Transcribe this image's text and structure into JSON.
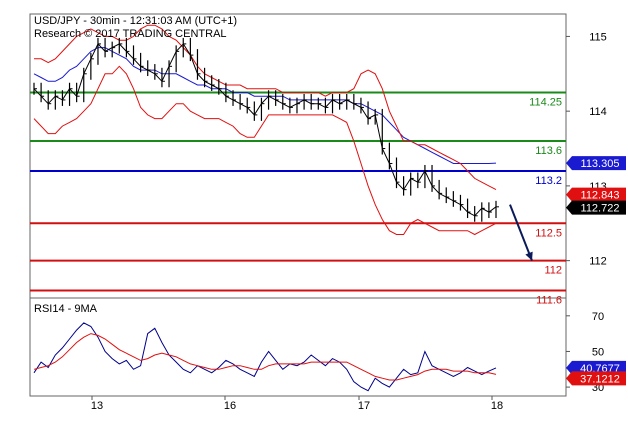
{
  "header": {
    "title": "USD/JPY - 30min - 12:31:03 AM (UTC+1)",
    "subtitle": "Research © 2017 TRADING CENTRAL"
  },
  "colors": {
    "price": "#000000",
    "bollinger": "#e01010",
    "moving_average": "#1a1ad0",
    "support_line": "#d01010",
    "resistance_line": "#1a8a1a",
    "pivot_line": "#0000cc",
    "price_tag_current": "#000000",
    "price_tag_ma": "#1a1ad0",
    "price_tag_band": "#e01010",
    "rsi_line": "#00008b",
    "rsi_ma_line": "#e01010",
    "grid_axis": "#555555"
  },
  "chart_data": [
    {
      "type": "line",
      "title": "USD/JPY - 30min - 12:31:03 AM (UTC+1)",
      "subtitle": "Research © 2017 TRADING CENTRAL",
      "x_tick_labels": [
        "13",
        "16",
        "17",
        "18"
      ],
      "y_tick_labels": [
        "115",
        "114",
        "113",
        "112"
      ],
      "ylim": [
        111.5,
        115.3
      ],
      "grid": false,
      "horizontal_levels": [
        {
          "value": 114.25,
          "label": "114.25",
          "kind": "resistance",
          "color": "#1a8a1a"
        },
        {
          "value": 113.6,
          "label": "113.6",
          "kind": "resistance",
          "color": "#1a8a1a"
        },
        {
          "value": 113.2,
          "label": "113.2",
          "kind": "pivot",
          "color": "#0000cc"
        },
        {
          "value": 112.5,
          "label": "112.5",
          "kind": "support",
          "color": "#d01010"
        },
        {
          "value": 112.0,
          "label": "112",
          "kind": "support",
          "color": "#d01010"
        },
        {
          "value": 111.6,
          "label": "111.6",
          "kind": "support",
          "color": "#d01010"
        }
      ],
      "price_tags": [
        {
          "label": "113.305",
          "value": 113.305,
          "color": "#1a1ad0"
        },
        {
          "label": "112.843",
          "value": 112.843,
          "color": "#e01010"
        },
        {
          "label": "112.722",
          "value": 112.722,
          "color": "#000000"
        }
      ],
      "series": [
        {
          "values": [
            114.3,
            114.2,
            114.1,
            114.2,
            114.15,
            114.3,
            114.2,
            114.5,
            114.7,
            114.9,
            114.8,
            114.85,
            114.9,
            114.8,
            114.7,
            114.6,
            114.55,
            114.5,
            114.4,
            114.6,
            114.8,
            114.9,
            114.75,
            114.5,
            114.4,
            114.35,
            114.3,
            114.2,
            114.15,
            114.1,
            114.05,
            113.95,
            114.1,
            114.2,
            114.15,
            114.1,
            114.05,
            114.1,
            114.15,
            114.1,
            114.1,
            114.05,
            114.15,
            114.1,
            114.15,
            114.1,
            114.05,
            113.9,
            113.95,
            113.5,
            113.3,
            113.05,
            112.95,
            113.1,
            113.05,
            113.2,
            113.0,
            112.9,
            112.85,
            112.8,
            112.75,
            112.65,
            112.6,
            112.7,
            112.65,
            112.72
          ]
        },
        {
          "values": [
            114.5,
            114.45,
            114.4,
            114.4,
            114.45,
            114.55,
            114.6,
            114.7,
            114.8,
            114.85,
            114.85,
            114.8,
            114.75,
            114.7,
            114.6,
            114.55,
            114.55,
            114.55,
            114.5,
            114.5,
            114.5,
            114.45,
            114.4,
            114.35,
            114.35,
            114.3,
            114.3,
            114.3,
            114.25,
            114.25,
            114.25,
            114.2,
            114.2,
            114.2,
            114.2,
            114.2,
            114.15,
            114.15,
            114.15,
            114.15,
            114.15,
            114.15,
            114.15,
            114.15,
            114.15,
            114.1,
            114.1,
            114.05,
            114.0,
            113.95,
            113.85,
            113.75,
            113.65,
            113.6,
            113.55,
            113.5,
            113.45,
            113.4,
            113.35,
            113.3,
            113.3,
            113.3,
            113.3,
            113.3,
            113.3,
            113.305
          ]
        },
        {
          "values": [
            114.7,
            114.7,
            114.65,
            114.7,
            114.8,
            114.9,
            115.0,
            115.05,
            115.1,
            115.05,
            115.0,
            115.0,
            114.95,
            114.95,
            115.0,
            115.1,
            115.15,
            115.15,
            115.1,
            115.0,
            114.95,
            114.85,
            114.75,
            114.6,
            114.5,
            114.45,
            114.4,
            114.35,
            114.35,
            114.35,
            114.3,
            114.3,
            114.3,
            114.3,
            114.3,
            114.25,
            114.25,
            114.25,
            114.25,
            114.25,
            114.25,
            114.2,
            114.25,
            114.25,
            114.25,
            114.3,
            114.5,
            114.55,
            114.5,
            114.3,
            114.0,
            113.8,
            113.6,
            113.6,
            113.55,
            113.55,
            113.5,
            113.45,
            113.4,
            113.35,
            113.3,
            113.2,
            113.1,
            113.05,
            113.0,
            112.95
          ]
        },
        {
          "values": [
            113.9,
            113.8,
            113.7,
            113.7,
            113.8,
            113.85,
            113.9,
            114.0,
            114.1,
            114.3,
            114.5,
            114.5,
            114.6,
            114.5,
            114.3,
            114.05,
            113.95,
            113.9,
            113.9,
            114.0,
            114.1,
            114.1,
            114.0,
            113.95,
            113.9,
            113.9,
            113.9,
            113.85,
            113.8,
            113.7,
            113.65,
            113.65,
            113.8,
            113.95,
            113.95,
            113.95,
            113.95,
            113.95,
            113.95,
            113.95,
            113.95,
            113.95,
            113.95,
            113.9,
            113.85,
            113.6,
            113.3,
            113.0,
            112.75,
            112.55,
            112.4,
            112.35,
            112.35,
            112.5,
            112.55,
            112.5,
            112.45,
            112.4,
            112.4,
            112.4,
            112.4,
            112.4,
            112.35,
            112.4,
            112.45,
            112.5
          ]
        }
      ],
      "forecast_arrow": {
        "from": 112.75,
        "to": 112.0
      }
    },
    {
      "type": "line",
      "title": "RSI14 - 9MA",
      "x_tick_labels": [
        "13",
        "16",
        "17",
        "18"
      ],
      "y_tick_labels": [
        "70",
        "50",
        "30"
      ],
      "ylim": [
        25,
        80
      ],
      "grid": false,
      "price_tags": [
        {
          "label": "40.7677",
          "value": 40.7677,
          "color": "#1a1ad0"
        },
        {
          "label": "37.1212",
          "value": 37.1212,
          "color": "#e01010"
        }
      ],
      "series": [
        {
          "values": [
            38,
            44,
            41,
            48,
            52,
            57,
            62,
            66,
            64,
            58,
            50,
            46,
            43,
            45,
            40,
            42,
            60,
            63,
            55,
            48,
            44,
            40,
            38,
            42,
            40,
            38,
            41,
            45,
            43,
            40,
            38,
            36,
            44,
            50,
            45,
            40,
            43,
            42,
            44,
            48,
            45,
            42,
            46,
            44,
            40,
            33,
            30,
            28,
            35,
            32,
            30,
            35,
            40,
            37,
            38,
            50,
            42,
            40,
            38,
            36,
            38,
            41,
            39,
            37,
            39,
            40.7677
          ]
        },
        {
          "values": [
            40,
            41,
            42,
            44,
            47,
            51,
            55,
            58,
            60,
            59,
            57,
            54,
            51,
            49,
            47,
            45,
            46,
            48,
            49,
            48,
            47,
            45,
            43,
            42,
            41,
            40,
            40,
            41,
            42,
            42,
            41,
            40,
            40,
            42,
            43,
            43,
            43,
            43,
            43,
            44,
            44,
            44,
            44,
            44,
            44,
            42,
            40,
            38,
            36,
            35,
            34,
            34,
            35,
            36,
            37,
            39,
            40,
            40,
            40,
            39,
            39,
            39,
            38,
            38,
            38,
            37.1212
          ]
        }
      ]
    }
  ]
}
